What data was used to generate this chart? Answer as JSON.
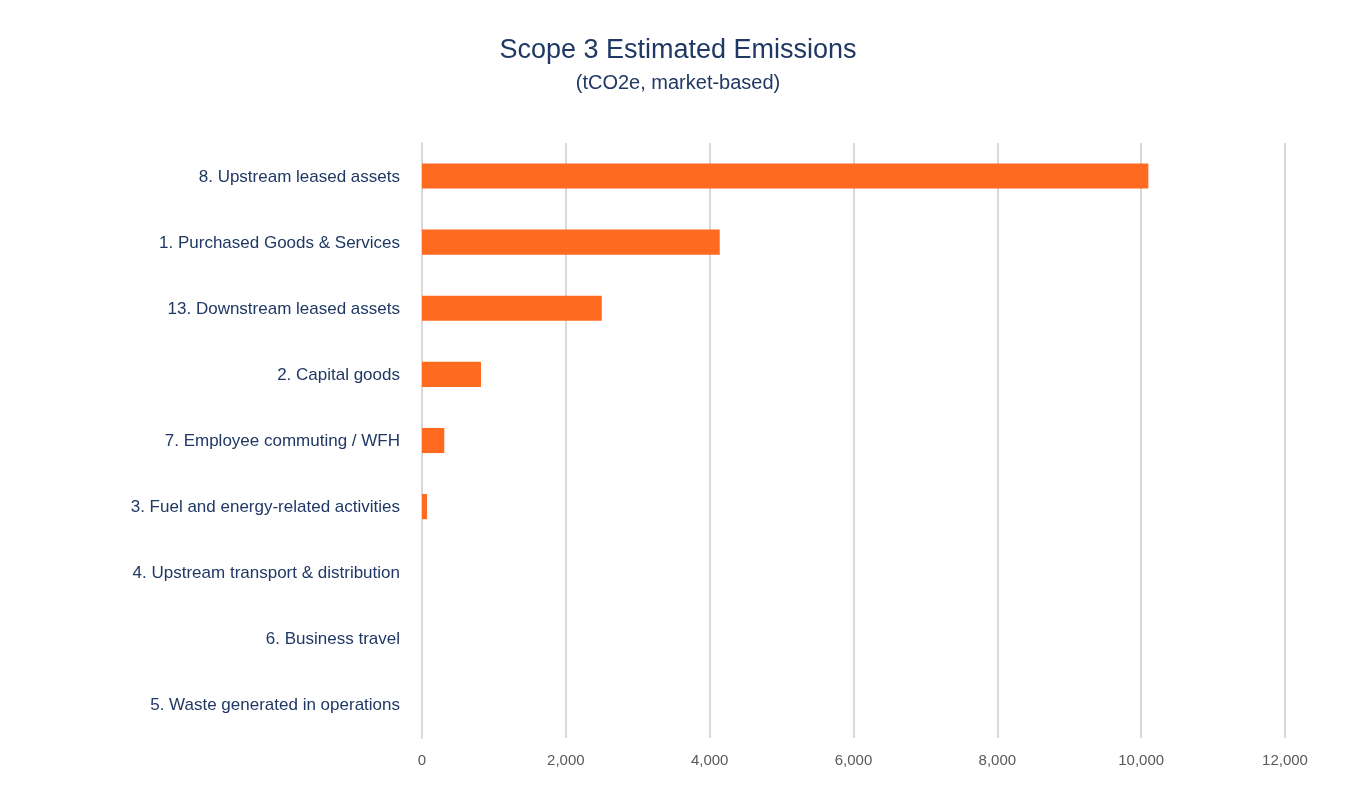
{
  "chart_data": {
    "type": "bar",
    "orientation": "horizontal",
    "title": "Scope 3 Estimated Emissions",
    "subtitle": "(tCO2e, market-based)",
    "categories": [
      "8. Upstream leased assets",
      "1. Purchased Goods & Services",
      "13. Downstream leased assets",
      "2. Capital goods",
      "7. Employee commuting / WFH",
      "3. Fuel and energy-related activities",
      "4. Upstream transport & distribution",
      "6. Business travel",
      "5. Waste generated in operations"
    ],
    "values": [
      10100,
      4140,
      2500,
      820,
      310,
      70,
      0,
      0,
      0
    ],
    "color": "#ff6a21",
    "xlim": [
      0,
      12000
    ],
    "xticks": [
      {
        "value": 0,
        "label": "0"
      },
      {
        "value": 2000,
        "label": "2,000"
      },
      {
        "value": 4000,
        "label": "4,000"
      },
      {
        "value": 6000,
        "label": "6,000"
      },
      {
        "value": 8000,
        "label": "8,000"
      },
      {
        "value": 10000,
        "label": "10,000"
      },
      {
        "value": 12000,
        "label": "12,000"
      }
    ],
    "grid": "x"
  }
}
